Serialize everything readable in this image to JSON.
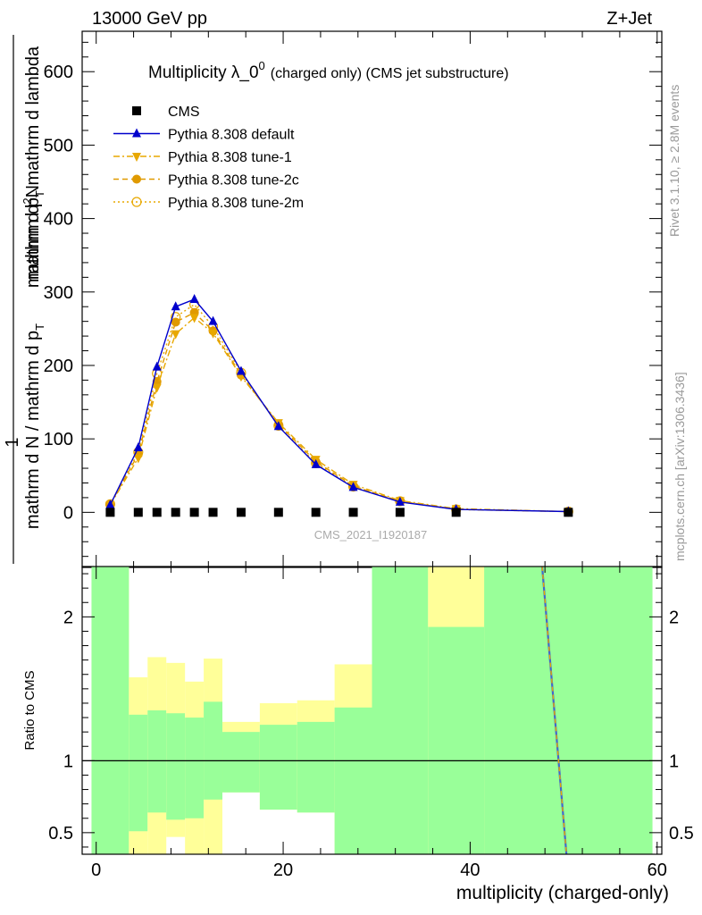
{
  "header": {
    "left": "13000 GeV pp",
    "right": "Z+Jet"
  },
  "side_labels": {
    "rivet": "Rivet 3.1.10, ≥ 2.8M events",
    "mcplots": "mcplots.cern.ch [arXiv:1306.3436]"
  },
  "chart_data": [
    {
      "type": "line",
      "title": "Multiplicity λ_0",
      "title_sup": "0",
      "title_suffix": "(charged only) (CMS jet substructure)",
      "watermark": "CMS_2021_I1920187",
      "ylabel_num": "mathrm d",
      "ylabel_num_sup": "2",
      "ylabel_num_tail": "N",
      "ylabel_den": "mathrm d p",
      "ylabel_den_sub": "T",
      "ylabel_den_tail": " mathrm d lambda",
      "ylabel_lower": "mathrm d N / mathrm d p",
      "ylabel_lower_tail": "T",
      "ylabel_one": "1",
      "xlim": [
        -1.5,
        60.5
      ],
      "ylim": [
        -75,
        655
      ],
      "yticks": [
        0,
        100,
        200,
        300,
        400,
        500,
        600
      ],
      "legend_position": "top-left",
      "series": [
        {
          "name": "CMS",
          "color": "#000000",
          "marker": "square",
          "x": [
            1.5,
            4.5,
            6.5,
            8.5,
            10.5,
            12.5,
            15.5,
            19.5,
            23.5,
            27.5,
            32.5,
            38.5,
            50.5
          ],
          "y": [
            0,
            0,
            0,
            0,
            0,
            0,
            0,
            0,
            0,
            0,
            0,
            0,
            0
          ]
        },
        {
          "name": "Pythia 8.308 default",
          "color": "#0000cc",
          "marker": "triangle-up",
          "line": "solid",
          "x": [
            1.5,
            4.5,
            6.5,
            8.5,
            10.5,
            12.5,
            15.5,
            19.5,
            23.5,
            27.5,
            32.5,
            38.5,
            50.5
          ],
          "y": [
            10,
            88,
            198,
            280,
            290,
            260,
            192,
            117,
            65,
            34,
            14,
            4,
            1
          ]
        },
        {
          "name": "Pythia 8.308 tune-1",
          "color": "#e8a800",
          "marker": "triangle-down",
          "line": "dashdot",
          "x": [
            1.5,
            4.5,
            6.5,
            8.5,
            10.5,
            12.5,
            15.5,
            19.5,
            23.5,
            27.5,
            32.5,
            38.5,
            50.5
          ],
          "y": [
            10,
            74,
            170,
            243,
            265,
            244,
            185,
            122,
            72,
            38,
            16,
            5,
            1
          ]
        },
        {
          "name": "Pythia 8.308 tune-2c",
          "color": "#e09a00",
          "marker": "circle",
          "line": "dashed",
          "x": [
            1.5,
            4.5,
            6.5,
            8.5,
            10.5,
            12.5,
            15.5,
            19.5,
            23.5,
            27.5,
            32.5,
            38.5,
            50.5
          ],
          "y": [
            11,
            79,
            178,
            259,
            272,
            247,
            187,
            120,
            69,
            36,
            15,
            4,
            1
          ]
        },
        {
          "name": "Pythia 8.308 tune-2m",
          "color": "#e8a800",
          "marker": "open-circle",
          "line": "dotted",
          "x": [
            1.5,
            4.5,
            6.5,
            8.5,
            10.5,
            12.5,
            15.5,
            19.5,
            23.5,
            27.5,
            32.5,
            38.5,
            50.5
          ],
          "y": [
            11,
            82,
            189,
            266,
            283,
            253,
            190,
            118,
            67,
            35,
            15,
            4,
            1
          ]
        }
      ]
    },
    {
      "type": "area",
      "ylabel": "Ratio to CMS",
      "xlabel": "multiplicity (charged-only)",
      "xlim": [
        -1.5,
        60.5
      ],
      "ylim": [
        0.35,
        2.35
      ],
      "yticks": [
        0.5,
        1,
        2
      ],
      "ytick_labels": [
        "0.5",
        "1",
        "2"
      ],
      "xticks": [
        0,
        20,
        40,
        60
      ],
      "reference_line": 1,
      "green_color": "#99ff99",
      "yellow_color": "#ffff99",
      "bins": [
        {
          "lo": -0.5,
          "hi": 3.5,
          "g": [
            0.35,
            2.35
          ],
          "y": [
            0.35,
            2.35
          ]
        },
        {
          "lo": 3.5,
          "hi": 5.5,
          "g": [
            0.51,
            1.32
          ],
          "y": [
            0.35,
            1.58
          ]
        },
        {
          "lo": 5.5,
          "hi": 7.5,
          "g": [
            0.64,
            1.35
          ],
          "y": [
            0.35,
            1.72
          ]
        },
        {
          "lo": 7.5,
          "hi": 9.5,
          "g": [
            0.59,
            1.33
          ],
          "y": [
            0.47,
            1.68
          ]
        },
        {
          "lo": 9.5,
          "hi": 11.5,
          "g": [
            0.6,
            1.3
          ],
          "y": [
            0.35,
            1.55
          ]
        },
        {
          "lo": 11.5,
          "hi": 13.5,
          "g": [
            0.73,
            1.41
          ],
          "y": [
            0.35,
            1.71
          ]
        },
        {
          "lo": 13.5,
          "hi": 17.5,
          "g": [
            0.78,
            1.2
          ],
          "y": [
            0.78,
            1.27
          ]
        },
        {
          "lo": 17.5,
          "hi": 21.5,
          "g": [
            0.66,
            1.25
          ],
          "y": [
            0.66,
            1.4
          ]
        },
        {
          "lo": 21.5,
          "hi": 25.5,
          "g": [
            0.64,
            1.27
          ],
          "y": [
            0.64,
            1.42
          ]
        },
        {
          "lo": 25.5,
          "hi": 29.5,
          "g": [
            0.35,
            1.37
          ],
          "y": [
            0.35,
            1.67
          ]
        },
        {
          "lo": 29.5,
          "hi": 35.5,
          "g": [
            0.35,
            2.35
          ],
          "y": [
            0.35,
            2.35
          ]
        },
        {
          "lo": 35.5,
          "hi": 41.5,
          "g": [
            0.35,
            1.93
          ],
          "y": [
            0.35,
            2.35
          ]
        },
        {
          "lo": 41.5,
          "hi": 59.5,
          "g": [
            0.35,
            2.35
          ],
          "y": [
            0.35,
            2.35
          ]
        }
      ],
      "outlier_line": {
        "x": [
          47.7,
          50.3
        ],
        "y": [
          2.35,
          0.35
        ],
        "color": "#4466cc",
        "dash_color": "#e8a800"
      }
    }
  ]
}
